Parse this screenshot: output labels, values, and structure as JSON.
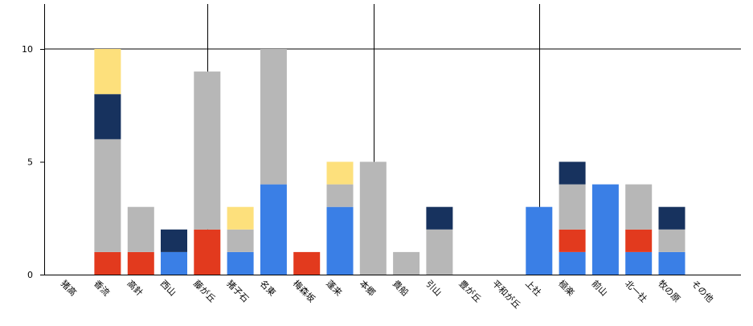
{
  "chart_data": {
    "type": "bar",
    "stacked": true,
    "categories": [
      "猪高",
      "香流",
      "高針",
      "西山",
      "藤が丘",
      "猪子石",
      "名東",
      "梅森坂",
      "蓬来",
      "本郷",
      "貴船",
      "引山",
      "豊が丘",
      "平和が丘",
      "上社",
      "極楽",
      "前山",
      "北一社",
      "牧の原",
      "その他"
    ],
    "series": [
      {
        "color": "#3a7fe6",
        "values": [
          0,
          0,
          0,
          1,
          0,
          1,
          4,
          0,
          3,
          0,
          0,
          0,
          0,
          0,
          3,
          1,
          4,
          1,
          1,
          0
        ]
      },
      {
        "color": "#e23a1e",
        "values": [
          0,
          1,
          1,
          0,
          2,
          0,
          0,
          1,
          0,
          0,
          0,
          0,
          0,
          0,
          0,
          1,
          0,
          1,
          0,
          0
        ]
      },
      {
        "color": "#b7b7b7",
        "values": [
          0,
          5,
          2,
          0,
          7,
          1,
          6,
          0,
          1,
          5,
          1,
          2,
          0,
          0,
          0,
          2,
          0,
          2,
          1,
          0
        ]
      },
      {
        "color": "#17325e",
        "values": [
          0,
          2,
          0,
          1,
          0,
          0,
          0,
          0,
          0,
          0,
          0,
          1,
          0,
          0,
          0,
          1,
          0,
          0,
          1,
          0
        ]
      },
      {
        "color": "#fde07c",
        "values": [
          0,
          2,
          0,
          0,
          0,
          1,
          0,
          0,
          1,
          0,
          0,
          0,
          0,
          0,
          0,
          0,
          0,
          0,
          0,
          0
        ]
      }
    ],
    "yticks": [
      "0",
      "5",
      "10"
    ],
    "ylim": [
      0,
      12
    ],
    "grid": true
  }
}
